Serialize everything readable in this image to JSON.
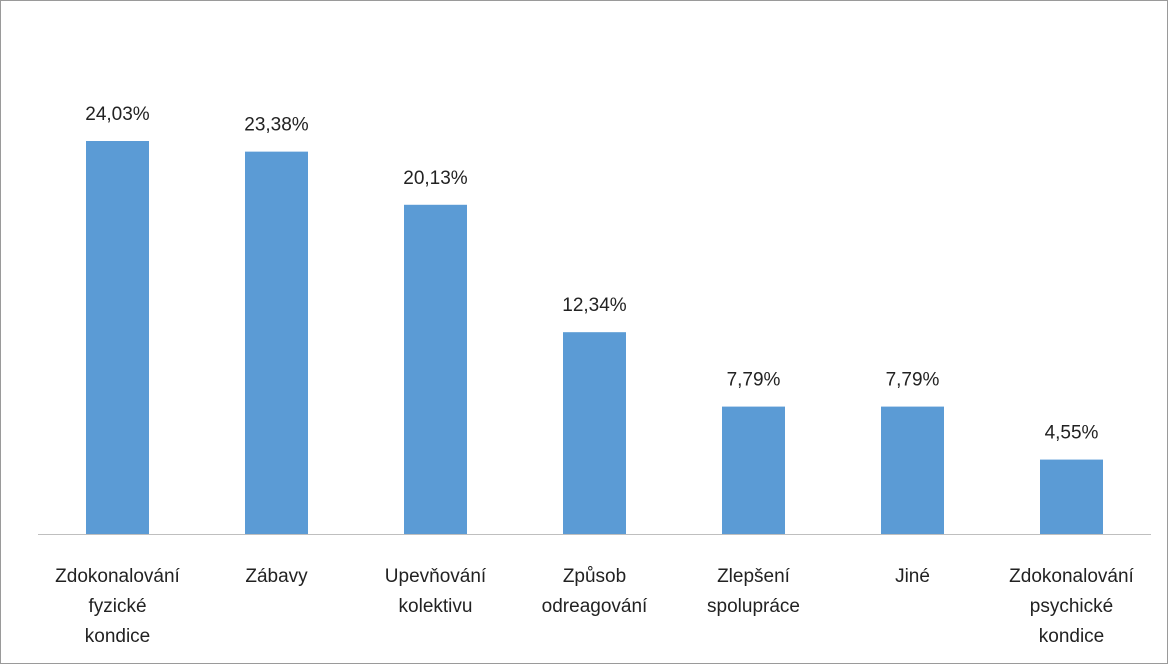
{
  "chart_data": {
    "type": "bar",
    "categories": [
      "Zdokonalování fyzické kondice",
      "Zábavy",
      "Upevňování kolektivu",
      "Způsob odreagování",
      "Zlepšení spolupráce",
      "Jiné",
      "Zdokonalování psychické kondice"
    ],
    "values": [
      24.03,
      23.38,
      20.13,
      12.34,
      7.79,
      7.79,
      4.55
    ],
    "value_labels": [
      "24,03%",
      "23,38%",
      "20,13%",
      "12,34%",
      "7,79%",
      "7,79%",
      "4,55%"
    ],
    "color": "#5b9bd5"
  }
}
